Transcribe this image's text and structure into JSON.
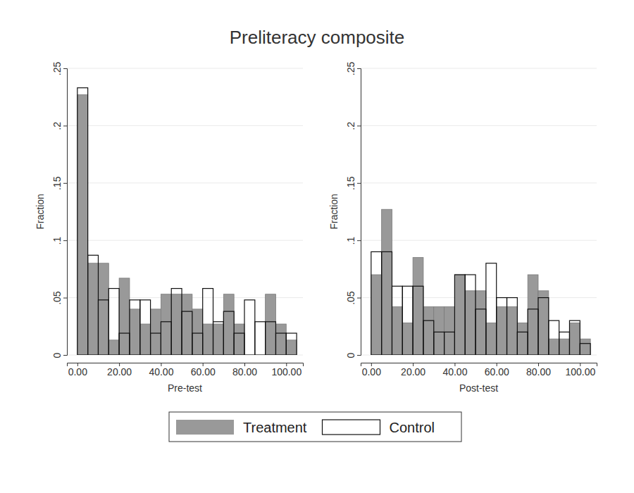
{
  "chart_data": [
    {
      "type": "histogram",
      "title": "Preliteracy composite",
      "x_label": "Pre-test",
      "y_label": "Fraction",
      "bins": [
        0,
        5,
        10,
        15,
        20,
        25,
        30,
        35,
        40,
        45,
        50,
        55,
        60,
        65,
        70,
        75,
        80,
        85,
        90,
        95,
        100,
        105
      ],
      "series": [
        {
          "name": "Treatment",
          "color": "#999999",
          "values": [
            0.227,
            0.08,
            0.08,
            0.013,
            0.067,
            0.04,
            0.027,
            0.04,
            0.053,
            0.053,
            0.053,
            0.04,
            0.027,
            0.027,
            0.053,
            0.027,
            0,
            0,
            0.053,
            0.027,
            0.013
          ]
        },
        {
          "name": "Control",
          "color": "#ffffff",
          "values": [
            0.233,
            0.087,
            0.048,
            0.058,
            0.019,
            0.048,
            0.048,
            0.019,
            0.029,
            0.058,
            0.038,
            0.019,
            0.058,
            0.029,
            0.038,
            0.019,
            0.048,
            0.029,
            0.029,
            0.019,
            0.019
          ]
        }
      ],
      "xlim": [
        -5,
        108
      ],
      "xticks": [
        {
          "value": 0,
          "label": "0.00"
        },
        {
          "value": 20,
          "label": "20.00"
        },
        {
          "value": 40,
          "label": "40.00"
        },
        {
          "value": 60,
          "label": "60.00"
        },
        {
          "value": 80,
          "label": "80.00"
        },
        {
          "value": 100,
          "label": "100.00"
        }
      ],
      "ylim": [
        0,
        0.25
      ],
      "yticks": [
        0,
        {
          "value": 0.05,
          "label": ".05"
        },
        {
          "value": 0.1,
          "label": ".1"
        },
        {
          "value": 0.15,
          "label": ".15"
        },
        {
          "value": 0.2,
          "label": ".2"
        },
        {
          "value": 0.25,
          "label": ".25"
        }
      ],
      "grid": true,
      "legend": "bottom"
    },
    {
      "type": "histogram",
      "x_label": "Post-test",
      "y_label": "Fraction",
      "bins": [
        0,
        5,
        10,
        15,
        20,
        25,
        30,
        35,
        40,
        45,
        50,
        55,
        60,
        65,
        70,
        75,
        80,
        85,
        90,
        95,
        100,
        105
      ],
      "series": [
        {
          "name": "Treatment",
          "color": "#999999",
          "values": [
            0.07,
            0.127,
            0.042,
            0.028,
            0.085,
            0.042,
            0.042,
            0.042,
            0.07,
            0.056,
            0.056,
            0.028,
            0.042,
            0.042,
            0.028,
            0.07,
            0.056,
            0.014,
            0.014,
            0.028,
            0.014
          ]
        },
        {
          "name": "Control",
          "color": "#ffffff",
          "values": [
            0.09,
            0.09,
            0.06,
            0.06,
            0.06,
            0.03,
            0.02,
            0.02,
            0.07,
            0.07,
            0.04,
            0.08,
            0.05,
            0.05,
            0.02,
            0.04,
            0.05,
            0.03,
            0.02,
            0.03,
            0.01
          ]
        }
      ],
      "xlim": [
        -5,
        108
      ],
      "xticks": [
        {
          "value": 0,
          "label": "0.00"
        },
        {
          "value": 20,
          "label": "20.00"
        },
        {
          "value": 40,
          "label": "40.00"
        },
        {
          "value": 60,
          "label": "60.00"
        },
        {
          "value": 80,
          "label": "80.00"
        },
        {
          "value": 100,
          "label": "100.00"
        }
      ],
      "ylim": [
        0,
        0.25
      ],
      "yticks": [
        0,
        {
          "value": 0.05,
          "label": ".05"
        },
        {
          "value": 0.1,
          "label": ".1"
        },
        {
          "value": 0.15,
          "label": ".15"
        },
        {
          "value": 0.2,
          "label": ".2"
        },
        {
          "value": 0.25,
          "label": ".25"
        }
      ],
      "grid": true
    }
  ]
}
